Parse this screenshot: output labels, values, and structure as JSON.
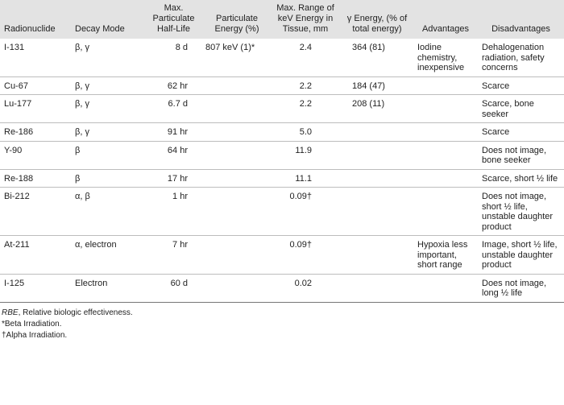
{
  "table": {
    "header": [
      "Radionuclide",
      "Decay Mode",
      "Max. Particulate Half-Life",
      "Particulate Energy (%)",
      "Max. Range of keV Energy in Tissue, mm",
      "γ Energy, (% of total energy)",
      "Advantages",
      "Disadvantages"
    ],
    "rows": [
      [
        "I-131",
        "β, γ",
        "8 d",
        "807 keV (1)*",
        "2.4",
        "364 (81)",
        "Iodine chemistry, inexpensive",
        "Dehalogenation radiation, safety concerns"
      ],
      [
        "Cu-67",
        "β, γ",
        "62 hr",
        null,
        "2.2",
        "184 (47)",
        null,
        "Scarce"
      ],
      [
        "Lu-177",
        "β, γ",
        "6.7 d",
        null,
        "2.2",
        "208 (11)",
        null,
        "Scarce, bone seeker"
      ],
      [
        "Re-186",
        "β, γ",
        "91 hr",
        null,
        "5.0",
        null,
        null,
        "Scarce"
      ],
      [
        "Y-90",
        "β",
        "64 hr",
        null,
        "11.9",
        null,
        null,
        "Does not image, bone seeker"
      ],
      [
        "Re-188",
        "β",
        "17 hr",
        null,
        "11.1",
        null,
        null,
        "Scarce, short ½ life"
      ],
      [
        "Bi-212",
        "α, β",
        "1 hr",
        null,
        "0.09†",
        null,
        null,
        "Does not image, short ½ life, unstable daughter product"
      ],
      [
        "At-211",
        "α, electron",
        "7 hr",
        null,
        "0.09†",
        null,
        "Hypoxia less important, short range",
        "Image, short ½ life, unstable daughter product"
      ],
      [
        "I-125",
        "Electron",
        "60 d",
        null,
        "0.02",
        null,
        null,
        "Does not image, long ½ life"
      ]
    ]
  },
  "footnotes": [
    {
      "term": "RBE",
      "text": ", Relative biologic effectiveness."
    },
    "*Beta Irradiation.",
    "†Alpha Irradiation."
  ]
}
